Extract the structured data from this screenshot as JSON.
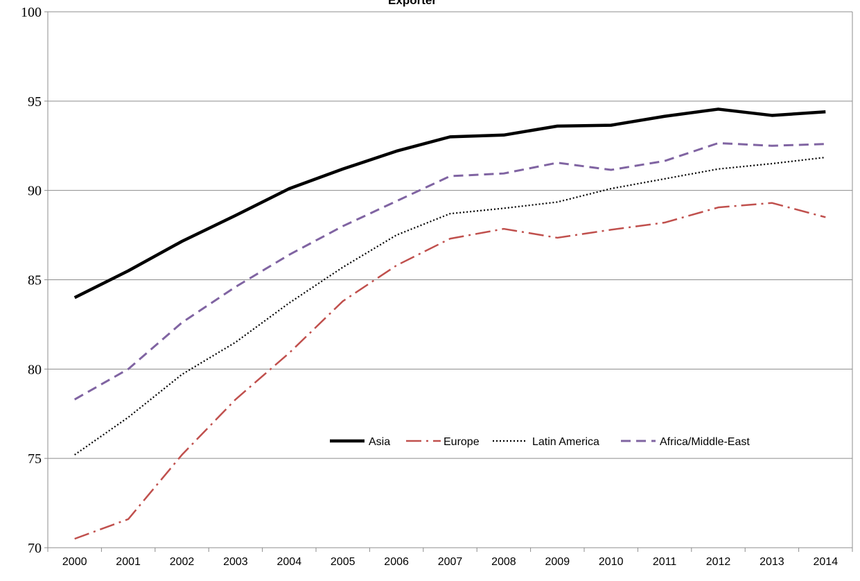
{
  "chart_data": {
    "type": "line",
    "title": "Exporter",
    "xlabel": "",
    "ylabel": "",
    "categories": [
      "2000",
      "2001",
      "2002",
      "2003",
      "2004",
      "2005",
      "2006",
      "2007",
      "2008",
      "2009",
      "2010",
      "2011",
      "2012",
      "2013",
      "2014"
    ],
    "ylim": [
      70,
      100
    ],
    "yticks": [
      70,
      75,
      80,
      85,
      90,
      95,
      100
    ],
    "grid": true,
    "legend_position": "inside-right",
    "series": [
      {
        "name": "Asia",
        "color": "#000000",
        "style": "solid",
        "values": [
          84.0,
          85.5,
          87.15,
          88.6,
          90.1,
          91.2,
          92.2,
          93.0,
          93.1,
          93.6,
          93.65,
          94.15,
          94.55,
          94.2,
          94.4
        ]
      },
      {
        "name": "Europe",
        "color": "#c0504d",
        "style": "dash-dot",
        "values": [
          70.5,
          71.6,
          75.2,
          78.3,
          80.9,
          83.8,
          85.8,
          87.3,
          87.85,
          87.35,
          87.8,
          88.2,
          89.05,
          89.3,
          88.5
        ]
      },
      {
        "name": "Latin America",
        "color": "#000000",
        "style": "dotted",
        "values": [
          75.2,
          77.3,
          79.7,
          81.5,
          83.7,
          85.7,
          87.5,
          88.7,
          89.0,
          89.35,
          90.1,
          90.65,
          91.2,
          91.5,
          91.85
        ]
      },
      {
        "name": "Africa/Middle-East",
        "color": "#8064a2",
        "style": "dashed",
        "values": [
          78.3,
          80.0,
          82.6,
          84.6,
          86.4,
          88.0,
          89.4,
          90.8,
          90.95,
          91.55,
          91.15,
          91.65,
          92.65,
          92.5,
          92.6
        ]
      }
    ]
  }
}
